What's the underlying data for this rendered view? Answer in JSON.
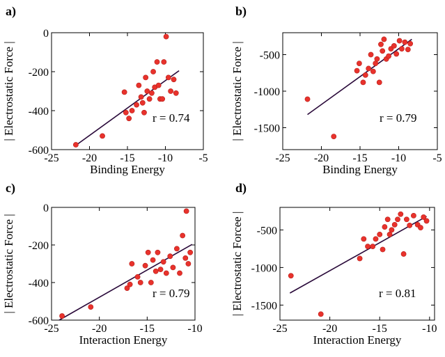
{
  "chart_data": [
    {
      "type": "scatter",
      "panel_label": "a)",
      "xlabel": "Binding Energy",
      "ylabel": "| Electrostatic Force |",
      "xlim": [
        -25,
        -5
      ],
      "ylim": [
        -600,
        0
      ],
      "xticks": [
        -25,
        -20,
        -15,
        -10,
        -5
      ],
      "yticks": [
        -600,
        -400,
        -200,
        0
      ],
      "annotation": "r = 0.74",
      "fit_line": {
        "x": [
          -21.8,
          -8.2
        ],
        "y": [
          -578,
          -195
        ]
      },
      "points": [
        {
          "x": -21.8,
          "y": -575
        },
        {
          "x": -18.3,
          "y": -530
        },
        {
          "x": -15.4,
          "y": -305
        },
        {
          "x": -15.2,
          "y": -410
        },
        {
          "x": -14.8,
          "y": -440
        },
        {
          "x": -14.4,
          "y": -400
        },
        {
          "x": -13.8,
          "y": -370
        },
        {
          "x": -13.5,
          "y": -270
        },
        {
          "x": -13.2,
          "y": -330
        },
        {
          "x": -13.0,
          "y": -360
        },
        {
          "x": -12.8,
          "y": -410
        },
        {
          "x": -12.6,
          "y": -230
        },
        {
          "x": -12.4,
          "y": -300
        },
        {
          "x": -12.1,
          "y": -340
        },
        {
          "x": -11.8,
          "y": -310
        },
        {
          "x": -11.6,
          "y": -200
        },
        {
          "x": -11.4,
          "y": -280
        },
        {
          "x": -11.1,
          "y": -150
        },
        {
          "x": -10.9,
          "y": -270
        },
        {
          "x": -10.7,
          "y": -340
        },
        {
          "x": -10.4,
          "y": -340
        },
        {
          "x": -10.2,
          "y": -150
        },
        {
          "x": -9.9,
          "y": -20
        },
        {
          "x": -9.6,
          "y": -230
        },
        {
          "x": -9.3,
          "y": -300
        },
        {
          "x": -8.9,
          "y": -240
        },
        {
          "x": -8.6,
          "y": -310
        }
      ]
    },
    {
      "type": "scatter",
      "panel_label": "b)",
      "xlabel": "Binding Energy",
      "ylabel": "| Electrostatic Force |",
      "xlim": [
        -25,
        -5
      ],
      "ylim": [
        -1800,
        -200
      ],
      "xticks": [
        -25,
        -20,
        -15,
        -10,
        -5
      ],
      "yticks": [
        -1500,
        -1000,
        -500
      ],
      "annotation": "r = 0.79",
      "fit_line": {
        "x": [
          -21.8,
          -8.3
        ],
        "y": [
          -1320,
          -290
        ]
      },
      "points": [
        {
          "x": -21.8,
          "y": -1110
        },
        {
          "x": -18.4,
          "y": -1620
        },
        {
          "x": -15.4,
          "y": -720
        },
        {
          "x": -15.1,
          "y": -620
        },
        {
          "x": -14.6,
          "y": -880
        },
        {
          "x": -14.3,
          "y": -780
        },
        {
          "x": -13.9,
          "y": -690
        },
        {
          "x": -13.6,
          "y": -500
        },
        {
          "x": -13.3,
          "y": -730
        },
        {
          "x": -13.0,
          "y": -620
        },
        {
          "x": -12.8,
          "y": -560
        },
        {
          "x": -12.5,
          "y": -880
        },
        {
          "x": -12.3,
          "y": -360
        },
        {
          "x": -12.1,
          "y": -450
        },
        {
          "x": -11.9,
          "y": -290
        },
        {
          "x": -11.6,
          "y": -560
        },
        {
          "x": -11.3,
          "y": -520
        },
        {
          "x": -11.0,
          "y": -420
        },
        {
          "x": -10.6,
          "y": -380
        },
        {
          "x": -10.3,
          "y": -490
        },
        {
          "x": -9.9,
          "y": -310
        },
        {
          "x": -9.6,
          "y": -420
        },
        {
          "x": -9.2,
          "y": -330
        },
        {
          "x": -8.8,
          "y": -430
        },
        {
          "x": -8.5,
          "y": -350
        }
      ]
    },
    {
      "type": "scatter",
      "panel_label": "c)",
      "xlabel": "Interaction Energy",
      "ylabel": "| Electrostatic Force |",
      "xlim": [
        -25,
        -10
      ],
      "ylim": [
        -600,
        0
      ],
      "xticks": [
        -25,
        -20,
        -15,
        -10
      ],
      "yticks": [
        -600,
        -400,
        -200,
        0
      ],
      "annotation": "r = 0.79",
      "fit_line": {
        "x": [
          -24.2,
          -10.3
        ],
        "y": [
          -600,
          -197
        ]
      },
      "points": [
        {
          "x": -23.9,
          "y": -578
        },
        {
          "x": -20.9,
          "y": -530
        },
        {
          "x": -17.1,
          "y": -430
        },
        {
          "x": -16.8,
          "y": -410
        },
        {
          "x": -16.6,
          "y": -300
        },
        {
          "x": -16.0,
          "y": -370
        },
        {
          "x": -15.7,
          "y": -400
        },
        {
          "x": -15.2,
          "y": -310
        },
        {
          "x": -14.9,
          "y": -240
        },
        {
          "x": -14.6,
          "y": -400
        },
        {
          "x": -14.4,
          "y": -280
        },
        {
          "x": -14.1,
          "y": -340
        },
        {
          "x": -13.9,
          "y": -240
        },
        {
          "x": -13.6,
          "y": -330
        },
        {
          "x": -13.3,
          "y": -290
        },
        {
          "x": -13.0,
          "y": -350
        },
        {
          "x": -12.6,
          "y": -260
        },
        {
          "x": -12.3,
          "y": -320
        },
        {
          "x": -11.9,
          "y": -220
        },
        {
          "x": -11.6,
          "y": -350
        },
        {
          "x": -11.3,
          "y": -150
        },
        {
          "x": -11.0,
          "y": -270
        },
        {
          "x": -10.9,
          "y": -20
        },
        {
          "x": -10.7,
          "y": -300
        },
        {
          "x": -10.5,
          "y": -240
        }
      ]
    },
    {
      "type": "scatter",
      "panel_label": "d)",
      "xlabel": "Interaction Energy",
      "ylabel": "| Electrostatic Forcee |",
      "xlim": [
        -25,
        -9.5
      ],
      "ylim": [
        -1700,
        -200
      ],
      "xticks": [
        -25,
        -20,
        -15,
        -10
      ],
      "yticks": [
        -1500,
        -1000,
        -500
      ],
      "annotation": "r = 0.81",
      "fit_line": {
        "x": [
          -24.0,
          -10.3
        ],
        "y": [
          -1340,
          -320
        ]
      },
      "points": [
        {
          "x": -23.9,
          "y": -1110
        },
        {
          "x": -20.9,
          "y": -1620
        },
        {
          "x": -17.0,
          "y": -880
        },
        {
          "x": -16.6,
          "y": -620
        },
        {
          "x": -16.2,
          "y": -720
        },
        {
          "x": -15.7,
          "y": -720
        },
        {
          "x": -15.4,
          "y": -620
        },
        {
          "x": -15.0,
          "y": -560
        },
        {
          "x": -14.7,
          "y": -760
        },
        {
          "x": -14.5,
          "y": -460
        },
        {
          "x": -14.2,
          "y": -360
        },
        {
          "x": -14.0,
          "y": -560
        },
        {
          "x": -13.8,
          "y": -500
        },
        {
          "x": -13.5,
          "y": -430
        },
        {
          "x": -13.2,
          "y": -360
        },
        {
          "x": -12.9,
          "y": -290
        },
        {
          "x": -12.6,
          "y": -820
        },
        {
          "x": -12.3,
          "y": -360
        },
        {
          "x": -12.0,
          "y": -440
        },
        {
          "x": -11.6,
          "y": -310
        },
        {
          "x": -11.2,
          "y": -430
        },
        {
          "x": -10.9,
          "y": -470
        },
        {
          "x": -10.6,
          "y": -330
        },
        {
          "x": -10.3,
          "y": -380
        }
      ]
    }
  ]
}
